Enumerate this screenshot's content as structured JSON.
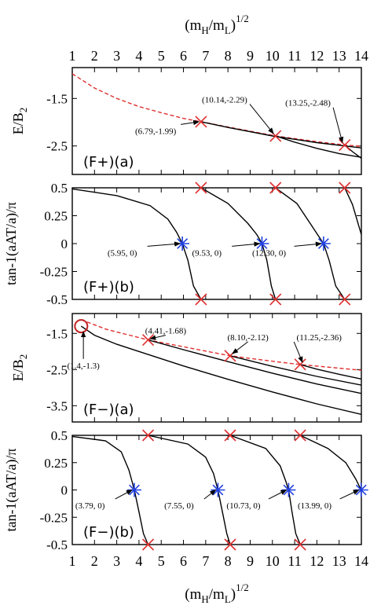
{
  "chart_data": [
    {
      "id": "Fp_a",
      "type": "line",
      "panel_label": "(F+)(a)",
      "ylabel": "E/B",
      "ylabel_sub": "2",
      "xlim": [
        1,
        14
      ],
      "ylim": [
        -3.1,
        -0.85
      ],
      "yticks": [
        -1.5,
        -2.5
      ],
      "ytick_labels": [
        "-1.5",
        "-2.5"
      ],
      "series": [
        {
          "style": "dashed",
          "color": "#e03030",
          "points": [
            [
              1,
              -0.98
            ],
            [
              2,
              -1.28
            ],
            [
              3,
              -1.5
            ],
            [
              4,
              -1.67
            ],
            [
              5,
              -1.8
            ],
            [
              6,
              -1.92
            ],
            [
              6.79,
              -1.99
            ],
            [
              8,
              -2.1
            ],
            [
              10.14,
              -2.29
            ],
            [
              12,
              -2.41
            ],
            [
              13.25,
              -2.48
            ],
            [
              14,
              -2.51
            ]
          ]
        },
        {
          "style": "solid",
          "color": "#000000",
          "points": [
            [
              6.79,
              -1.99
            ],
            [
              8,
              -2.11
            ],
            [
              10,
              -2.29
            ],
            [
              12,
              -2.43
            ],
            [
              14,
              -2.54
            ]
          ]
        },
        {
          "style": "solid",
          "color": "#000000",
          "points": [
            [
              10.14,
              -2.29
            ],
            [
              11,
              -2.42
            ],
            [
              12,
              -2.55
            ],
            [
              13,
              -2.66
            ],
            [
              14,
              -2.74
            ]
          ]
        },
        {
          "style": "solid",
          "color": "#000000",
          "points": [
            [
              13.25,
              -2.48
            ],
            [
              13.6,
              -2.62
            ],
            [
              14,
              -2.76
            ]
          ]
        }
      ],
      "markers": [
        {
          "kind": "cross",
          "x": 6.79,
          "y": -1.99
        },
        {
          "kind": "cross",
          "x": 10.14,
          "y": -2.29
        },
        {
          "kind": "cross",
          "x": 13.25,
          "y": -2.48
        }
      ],
      "annotations": [
        {
          "text": "(6.79,-1.99)",
          "tx": 4.75,
          "ty": -2.18,
          "ax": 6.7,
          "ay": -1.99
        },
        {
          "text": "(10.14,-2.29)",
          "tx": 7.85,
          "ty": -1.52,
          "ax": 10.05,
          "ay": -2.24
        },
        {
          "text": "(13.25,-2.48)",
          "tx": 11.6,
          "ty": -1.59,
          "ax": 13.15,
          "ay": -2.43
        }
      ]
    },
    {
      "id": "Fp_b",
      "type": "line",
      "panel_label": "(F+)(b)",
      "ylabel": "tan-1(aAT/a)/π",
      "xlim": [
        1,
        14
      ],
      "ylim": [
        -0.5,
        0.5
      ],
      "yticks": [
        0.5,
        0.25,
        0,
        -0.25,
        -0.5
      ],
      "ytick_labels": [
        "0.5",
        "0.25",
        "0",
        "-0.25",
        "-0.5"
      ],
      "series": [
        {
          "style": "solid",
          "color": "#000000",
          "points": [
            [
              1,
              0.49
            ],
            [
              3,
              0.43
            ],
            [
              4.5,
              0.34
            ],
            [
              5.3,
              0.22
            ],
            [
              5.7,
              0.1
            ],
            [
              5.95,
              0
            ],
            [
              6.2,
              -0.15
            ],
            [
              6.45,
              -0.38
            ],
            [
              6.79,
              -0.5
            ]
          ]
        },
        {
          "style": "solid",
          "color": "#000000",
          "points": [
            [
              6.79,
              0.5
            ],
            [
              8,
              0.36
            ],
            [
              8.9,
              0.18
            ],
            [
              9.3,
              0.08
            ],
            [
              9.53,
              0
            ],
            [
              9.75,
              -0.15
            ],
            [
              9.95,
              -0.38
            ],
            [
              10.14,
              -0.5
            ]
          ]
        },
        {
          "style": "solid",
          "color": "#000000",
          "points": [
            [
              10.14,
              0.5
            ],
            [
              11.1,
              0.36
            ],
            [
              11.7,
              0.18
            ],
            [
              12.1,
              0.06
            ],
            [
              12.3,
              0
            ],
            [
              12.55,
              -0.15
            ],
            [
              12.85,
              -0.38
            ],
            [
              13.25,
              -0.5
            ]
          ]
        },
        {
          "style": "solid",
          "color": "#000000",
          "points": [
            [
              13.25,
              0.5
            ],
            [
              13.6,
              0.35
            ],
            [
              14,
              0.08
            ]
          ]
        }
      ],
      "markers": [
        {
          "kind": "cross",
          "x": 6.79,
          "y": 0.5
        },
        {
          "kind": "cross",
          "x": 10.14,
          "y": 0.5
        },
        {
          "kind": "cross",
          "x": 13.25,
          "y": 0.5
        },
        {
          "kind": "cross",
          "x": 6.79,
          "y": -0.5
        },
        {
          "kind": "cross",
          "x": 10.14,
          "y": -0.5
        },
        {
          "kind": "cross",
          "x": 13.25,
          "y": -0.5
        },
        {
          "kind": "star",
          "x": 5.95,
          "y": 0
        },
        {
          "kind": "star",
          "x": 9.53,
          "y": 0
        },
        {
          "kind": "star",
          "x": 12.3,
          "y": 0
        }
      ],
      "annotations": [
        {
          "text": "(5.95, 0)",
          "tx": 3.25,
          "ty": -0.08,
          "ax": 5.85,
          "ay": 0
        },
        {
          "text": "(9.53, 0)",
          "tx": 7.05,
          "ty": -0.08,
          "ax": 9.43,
          "ay": 0
        },
        {
          "text": "(12.30, 0)",
          "tx": 9.85,
          "ty": -0.08,
          "ax": 12.2,
          "ay": 0
        }
      ]
    },
    {
      "id": "Fm_a",
      "type": "line",
      "panel_label": "(F−)(a)",
      "ylabel": "E/B",
      "ylabel_sub": "2",
      "xlim": [
        1,
        14
      ],
      "ylim": [
        -3.95,
        -0.95
      ],
      "yticks": [
        -1.5,
        -2.5,
        -3.5
      ],
      "ytick_labels": [
        "-1.5",
        "-2.5",
        "-3.5"
      ],
      "series": [
        {
          "style": "dashed",
          "color": "#e03030",
          "points": [
            [
              1.4,
              -1.12
            ],
            [
              2.5,
              -1.38
            ],
            [
              4.41,
              -1.68
            ],
            [
              6,
              -1.87
            ],
            [
              8.1,
              -2.12
            ],
            [
              10,
              -2.27
            ],
            [
              11.25,
              -2.36
            ],
            [
              14,
              -2.52
            ]
          ]
        },
        {
          "style": "solid",
          "color": "#000000",
          "points": [
            [
              1.4,
              -1.3
            ],
            [
              2,
              -1.55
            ],
            [
              3,
              -1.8
            ],
            [
              4,
              -2.0
            ],
            [
              6,
              -2.4
            ],
            [
              8,
              -2.77
            ],
            [
              10,
              -3.12
            ],
            [
              12,
              -3.45
            ],
            [
              14,
              -3.74
            ]
          ]
        },
        {
          "style": "solid",
          "color": "#000000",
          "points": [
            [
              4.41,
              -1.68
            ],
            [
              6,
              -1.95
            ],
            [
              8,
              -2.28
            ],
            [
              10,
              -2.6
            ],
            [
              12,
              -2.9
            ],
            [
              14,
              -3.16
            ]
          ]
        },
        {
          "style": "solid",
          "color": "#000000",
          "points": [
            [
              8.1,
              -2.12
            ],
            [
              10,
              -2.41
            ],
            [
              12,
              -2.69
            ],
            [
              14,
              -2.93
            ]
          ]
        },
        {
          "style": "solid",
          "color": "#000000",
          "points": [
            [
              11.25,
              -2.36
            ],
            [
              12,
              -2.49
            ],
            [
              13,
              -2.63
            ],
            [
              14,
              -2.76
            ]
          ]
        }
      ],
      "markers": [
        {
          "kind": "circle",
          "x": 1.4,
          "y": -1.3
        },
        {
          "kind": "cross",
          "x": 4.41,
          "y": -1.68
        },
        {
          "kind": "cross",
          "x": 8.1,
          "y": -2.12
        },
        {
          "kind": "cross",
          "x": 11.25,
          "y": -2.36
        }
      ],
      "annotations": [
        {
          "text": "(1.4,-1.3)",
          "tx": 1.5,
          "ty": -2.38,
          "ax": 1.5,
          "ay": -1.45
        },
        {
          "text": "(4.41,-1.68)",
          "tx": 5.2,
          "ty": -1.42,
          "ax": 4.5,
          "ay": -1.65
        },
        {
          "text": "(8.10,-2.12)",
          "tx": 8.9,
          "ty": -1.6,
          "ax": 8.2,
          "ay": -2.06
        },
        {
          "text": "(11.25,-2.36)",
          "tx": 12.1,
          "ty": -1.6,
          "ax": 11.35,
          "ay": -2.3
        }
      ]
    },
    {
      "id": "Fm_b",
      "type": "line",
      "panel_label": "(F−)(b)",
      "ylabel": "tan-1(aAT/a)/π",
      "xlim": [
        1,
        14
      ],
      "ylim": [
        -0.5,
        0.5
      ],
      "yticks": [
        0.5,
        0.25,
        0,
        -0.25,
        -0.5
      ],
      "ytick_labels": [
        "0.5",
        "0.25",
        "0",
        "-0.25",
        "-0.5"
      ],
      "series": [
        {
          "style": "solid",
          "color": "#000000",
          "points": [
            [
              1,
              0.49
            ],
            [
              2.5,
              0.45
            ],
            [
              3.2,
              0.35
            ],
            [
              3.55,
              0.18
            ],
            [
              3.79,
              0
            ],
            [
              4.0,
              -0.2
            ],
            [
              4.2,
              -0.4
            ],
            [
              4.41,
              -0.5
            ]
          ]
        },
        {
          "style": "solid",
          "color": "#000000",
          "points": [
            [
              4.41,
              0.5
            ],
            [
              6.2,
              0.42
            ],
            [
              7.0,
              0.3
            ],
            [
              7.35,
              0.15
            ],
            [
              7.55,
              0
            ],
            [
              7.75,
              -0.2
            ],
            [
              7.95,
              -0.4
            ],
            [
              8.1,
              -0.5
            ]
          ]
        },
        {
          "style": "solid",
          "color": "#000000",
          "points": [
            [
              8.1,
              0.5
            ],
            [
              9.7,
              0.38
            ],
            [
              10.35,
              0.22
            ],
            [
              10.6,
              0.08
            ],
            [
              10.73,
              0
            ],
            [
              10.88,
              -0.2
            ],
            [
              11.05,
              -0.4
            ],
            [
              11.25,
              -0.5
            ]
          ]
        },
        {
          "style": "solid",
          "color": "#000000",
          "points": [
            [
              11.25,
              0.5
            ],
            [
              12.5,
              0.38
            ],
            [
              13.3,
              0.25
            ],
            [
              13.75,
              0.1
            ],
            [
              13.99,
              0
            ]
          ]
        }
      ],
      "markers": [
        {
          "kind": "cross",
          "x": 4.41,
          "y": 0.5
        },
        {
          "kind": "cross",
          "x": 8.1,
          "y": 0.5
        },
        {
          "kind": "cross",
          "x": 11.25,
          "y": 0.5
        },
        {
          "kind": "cross",
          "x": 4.41,
          "y": -0.5
        },
        {
          "kind": "cross",
          "x": 8.1,
          "y": -0.5
        },
        {
          "kind": "cross",
          "x": 11.25,
          "y": -0.5
        },
        {
          "kind": "star",
          "x": 3.79,
          "y": 0
        },
        {
          "kind": "star",
          "x": 7.55,
          "y": 0
        },
        {
          "kind": "star",
          "x": 10.73,
          "y": 0
        },
        {
          "kind": "star",
          "x": 13.99,
          "y": 0
        }
      ],
      "annotations": [
        {
          "text": "(3.79, 0)",
          "tx": 1.8,
          "ty": -0.14,
          "ax": 3.69,
          "ay": 0
        },
        {
          "text": "(7.55, 0)",
          "tx": 5.8,
          "ty": -0.14,
          "ax": 7.45,
          "ay": 0
        },
        {
          "text": "(10.73, 0)",
          "tx": 8.7,
          "ty": -0.14,
          "ax": 10.63,
          "ay": 0
        },
        {
          "text": "(13.99, 0)",
          "tx": 11.9,
          "ty": -0.14,
          "ax": 13.89,
          "ay": 0
        }
      ]
    }
  ],
  "axes": {
    "x_label_main": "(m",
    "x_label_sub1": "H",
    "x_label_mid": "/m",
    "x_label_sub2": "L",
    "x_label_close": ")",
    "x_label_exp": "1/2",
    "xticks": [
      1,
      2,
      3,
      4,
      5,
      6,
      7,
      8,
      9,
      10,
      11,
      12,
      13,
      14
    ],
    "xtick_labels": [
      "1",
      "2",
      "3",
      "4",
      "5",
      "6",
      "7",
      "8",
      "9",
      "10",
      "11",
      "12",
      "13",
      "14"
    ]
  },
  "colors": {
    "dashed": "#e03030",
    "cross": "#e03030",
    "star": "#2040e0",
    "circle": "#c02020",
    "line": "#000000"
  }
}
